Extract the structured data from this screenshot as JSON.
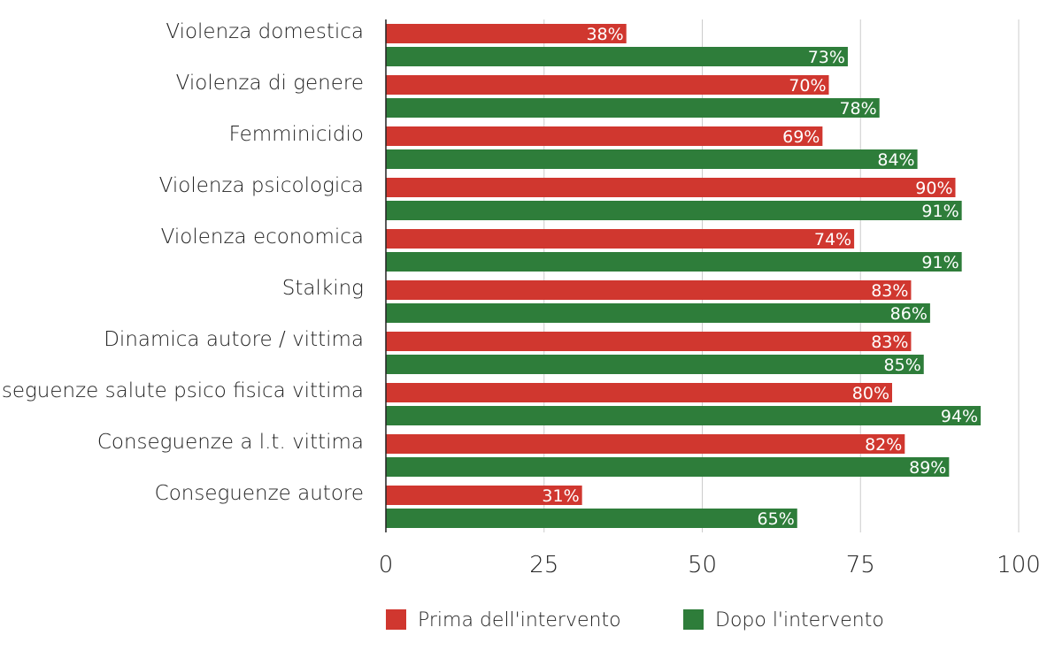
{
  "chart_data": {
    "type": "bar",
    "orientation": "horizontal",
    "categories": [
      "Violenza domestica",
      "Violenza di genere",
      "Femminicidio",
      "Violenza psicologica",
      "Violenza economica",
      "Stalking",
      "Dinamica autore / vittima",
      "Conseguenze salute psico fisica vittima",
      "Conseguenze a l.t. vittima",
      "Conseguenze autore"
    ],
    "series": [
      {
        "name": "Prima dell'intervento",
        "color": "#d0372f",
        "values": [
          38,
          70,
          69,
          90,
          74,
          83,
          83,
          80,
          82,
          31
        ],
        "labels": [
          "38%",
          "70%",
          "69%",
          "90%",
          "74%",
          "83%",
          "83%",
          "80%",
          "82%",
          "31%"
        ]
      },
      {
        "name": "Dopo l'intervento",
        "color": "#2e7d3a",
        "values": [
          73,
          78,
          84,
          91,
          91,
          86,
          85,
          94,
          89,
          65
        ],
        "labels": [
          "73%",
          "78%",
          "84%",
          "91%",
          "91%",
          "86%",
          "85%",
          "94%",
          "89%",
          "65%"
        ]
      }
    ],
    "xlim": [
      0,
      100
    ],
    "xticks": [
      0,
      25,
      50,
      75,
      100
    ],
    "xtick_labels": [
      "0",
      "25",
      "50",
      "75",
      "100"
    ],
    "grid": true,
    "legend_position": "bottom"
  }
}
